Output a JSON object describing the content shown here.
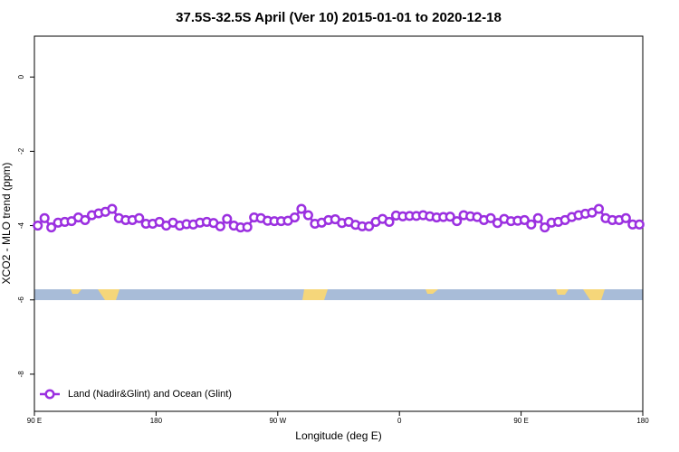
{
  "chart_data": {
    "type": "line",
    "title": "37.5S-32.5S April (Ver 10)   2015-01-01 to 2020-12-18",
    "x_label": "Longitude (deg E)",
    "y_label": "XCO2 - MLO trend (ppm)",
    "x": [
      92.5,
      97.5,
      102.5,
      107.5,
      112.5,
      117.5,
      122.5,
      127.5,
      132.5,
      137.5,
      142.5,
      147.5,
      152.5,
      157.5,
      162.5,
      167.5,
      172.5,
      177.5,
      182.5,
      187.5,
      192.5,
      197.5,
      202.5,
      207.5,
      212.5,
      217.5,
      222.5,
      227.5,
      232.5,
      237.5,
      242.5,
      247.5,
      252.5,
      257.5,
      262.5,
      267.5,
      272.5,
      277.5,
      282.5,
      287.5,
      292.5,
      297.5,
      302.5,
      307.5,
      312.5,
      317.5,
      322.5,
      327.5,
      332.5,
      337.5,
      342.5,
      347.5,
      352.5,
      357.5,
      362.5,
      367.5,
      372.5,
      377.5,
      382.5,
      387.5,
      392.5,
      397.5,
      402.5,
      407.5,
      412.5,
      417.5,
      422.5,
      427.5,
      432.5,
      437.5,
      442.5,
      447.5,
      452.5,
      457.5,
      462.5,
      467.5,
      472.5,
      477.5,
      482.5,
      487.5,
      492.5,
      497.5,
      502.5,
      507.5,
      512.5,
      517.5,
      522.5,
      527.5,
      532.5,
      537.5
    ],
    "series": [
      {
        "name": "Land (Nadir&Glint) and Ocean (Glint)",
        "color": "#9b30e0",
        "values": [
          -4.0,
          -3.8,
          -4.05,
          -3.92,
          -3.9,
          -3.88,
          -3.78,
          -3.85,
          -3.72,
          -3.67,
          -3.63,
          -3.55,
          -3.8,
          -3.85,
          -3.85,
          -3.8,
          -3.95,
          -3.95,
          -3.9,
          -4.0,
          -3.92,
          -4.0,
          -3.96,
          -3.97,
          -3.92,
          -3.9,
          -3.93,
          -4.02,
          -3.82,
          -4.0,
          -4.05,
          -4.04,
          -3.78,
          -3.8,
          -3.87,
          -3.88,
          -3.88,
          -3.87,
          -3.78,
          -3.55,
          -3.72,
          -3.95,
          -3.92,
          -3.85,
          -3.83,
          -3.93,
          -3.9,
          -3.98,
          -4.02,
          -4.02,
          -3.9,
          -3.82,
          -3.9,
          -3.73,
          -3.75,
          -3.74,
          -3.74,
          -3.72,
          -3.75,
          -3.78,
          -3.77,
          -3.76,
          -3.88,
          -3.72,
          -3.75,
          -3.77,
          -3.85,
          -3.8,
          -3.93,
          -3.82,
          -3.88,
          -3.87,
          -3.85,
          -3.97,
          -3.8,
          -4.05,
          -3.92,
          -3.9,
          -3.85,
          -3.77,
          -3.72,
          -3.68,
          -3.65,
          -3.55,
          -3.8,
          -3.85,
          -3.85,
          -3.8,
          -3.97,
          -3.97
        ]
      }
    ],
    "xlim": [
      90,
      540
    ],
    "xticks": [
      {
        "value": 90,
        "label": "90 E"
      },
      180,
      {
        "value": 270,
        "label": "90 W"
      },
      {
        "value": 360,
        "label": "0"
      },
      {
        "value": 450,
        "label": "90 E"
      },
      {
        "value": 540,
        "label": "180"
      }
    ],
    "ylim": [
      -9,
      1.1
    ],
    "yticks": [
      0,
      -2,
      -4,
      -6,
      -8
    ],
    "legend": "bottom-left",
    "grid": false
  }
}
